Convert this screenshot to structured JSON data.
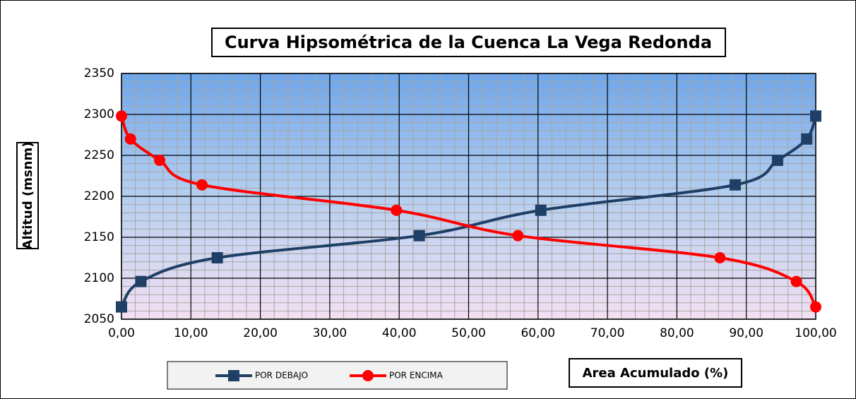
{
  "chart_data": {
    "type": "line",
    "title": "Curva Hipsométrica de la Cuenca La Vega Redonda",
    "ylabel": "Altitud (msnm)",
    "xlabel": "Area Acumulado (%)",
    "series": [
      {
        "name": "POR DEBAJO",
        "color": "#1f3f66",
        "marker": "square",
        "x": [
          0,
          2.8,
          13.8,
          42.9,
          60.4,
          88.4,
          94.5,
          98.7,
          100
        ],
        "values": [
          2065,
          2096,
          2125,
          2152,
          2183,
          2214,
          2244,
          2270,
          2298
        ]
      },
      {
        "name": "POR ENCIMA",
        "color": "#ff0000",
        "marker": "circle",
        "x": [
          0,
          1.3,
          5.5,
          11.6,
          39.6,
          57.1,
          86.2,
          97.2,
          100
        ],
        "values": [
          2298,
          2270,
          2244,
          2214,
          2183,
          2152,
          2125,
          2096,
          2065
        ]
      }
    ],
    "xlim": [
      0,
      100
    ],
    "xticks": [
      {
        "value": 0,
        "label": "0,00"
      },
      {
        "value": 10,
        "label": "10,00"
      },
      {
        "value": 20,
        "label": "20,00"
      },
      {
        "value": 30,
        "label": "30,00"
      },
      {
        "value": 40,
        "label": "40,00"
      },
      {
        "value": 50,
        "label": "50,00"
      },
      {
        "value": 60,
        "label": "60,00"
      },
      {
        "value": 70,
        "label": "70,00"
      },
      {
        "value": 80,
        "label": "80,00"
      },
      {
        "value": 90,
        "label": "90,00"
      },
      {
        "value": 100,
        "label": "100,00"
      }
    ],
    "ylim": [
      2050,
      2350
    ],
    "yticks": [
      2050,
      2100,
      2150,
      2200,
      2250,
      2300,
      2350
    ],
    "grid": true,
    "smooth": true
  }
}
